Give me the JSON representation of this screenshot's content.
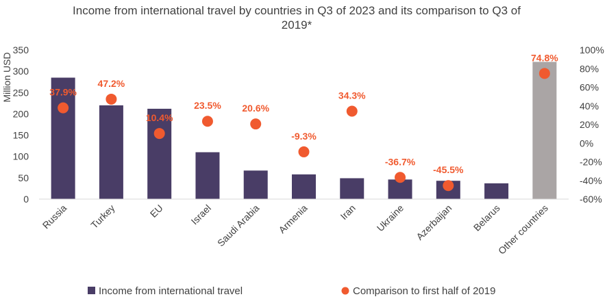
{
  "chart_data": {
    "type": "bar",
    "title_line1": "Income from international travel by countries in Q3 of 2023  and its comparison to Q3 of",
    "title_line2": "2019*",
    "ylabel": "Million USD",
    "ylim": [
      0,
      350
    ],
    "y_ticks": [
      "0",
      "50",
      "100",
      "150",
      "200",
      "250",
      "300",
      "350"
    ],
    "y2lim": [
      -60,
      100
    ],
    "y2_ticks": [
      "-60%",
      "-40%",
      "-20%",
      "0%",
      "20%",
      "40%",
      "60%",
      "80%",
      "100%"
    ],
    "grid": false,
    "legend_position": "bottom",
    "categories": [
      "Russia",
      "Turkey",
      "EU",
      "Israel",
      "Saudi Arabia",
      "Armenia",
      "Iran",
      "Ukraine",
      "Azerbaijan",
      "Belarus",
      "Other countries"
    ],
    "series": [
      {
        "name": "Income from international travel",
        "type": "bar",
        "axis": "left",
        "values": [
          285,
          220,
          212,
          110,
          67,
          58,
          49,
          46,
          43,
          37,
          322
        ]
      },
      {
        "name": "Comparison to first half of 2019",
        "type": "scatter",
        "axis": "right",
        "values": [
          37.9,
          47.2,
          10.4,
          23.5,
          20.6,
          -9.3,
          34.3,
          -36.7,
          -45.5,
          null,
          74.8
        ],
        "labels": [
          "37.9%",
          "47.2%",
          "10.4%",
          "23.5%",
          "20.6%",
          "-9.3%",
          "34.3%",
          "-36.7%",
          "-45.5%",
          "",
          "74.8%"
        ]
      }
    ],
    "colors": {
      "bar": "#493d66",
      "bar_highlight": "#aaa5a5",
      "dot": "#f05a2f",
      "label": "#f05a2f",
      "axis": "#d9d9d9",
      "text": "#404040"
    }
  }
}
